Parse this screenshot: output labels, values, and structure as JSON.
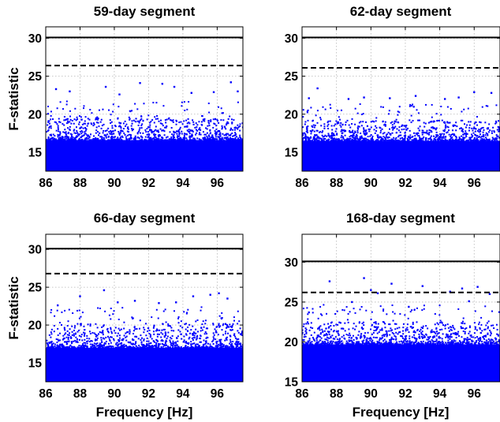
{
  "chart_data": [
    {
      "type": "scatter",
      "title": "59-day segment",
      "xlabel": "",
      "ylabel": "F-statistic",
      "xlim": [
        86,
        97.5
      ],
      "ylim": [
        12.5,
        31.5
      ],
      "xticks": [
        "86",
        "88",
        "90",
        "92",
        "94",
        "96"
      ],
      "yticks": [
        "15",
        "20",
        "25",
        "30"
      ],
      "grid": true,
      "thresholds": [
        {
          "style": "solid",
          "value": 30.1
        },
        {
          "style": "dashed",
          "value": 26.4
        }
      ],
      "dense_band": {
        "from": 12.5,
        "to": 16.6
      },
      "scatter_max": 19.5,
      "outliers": [
        [
          86.6,
          23.3
        ],
        [
          87.4,
          23.0
        ],
        [
          89.5,
          23.6
        ],
        [
          90.3,
          22.6
        ],
        [
          91.5,
          24.1
        ],
        [
          92.8,
          24.0
        ],
        [
          93.5,
          23.6
        ],
        [
          94.5,
          22.8
        ],
        [
          95.8,
          22.9
        ],
        [
          96.8,
          24.2
        ],
        [
          97.2,
          23.0
        ]
      ],
      "color": "#0000ff"
    },
    {
      "type": "scatter",
      "title": "62-day segment",
      "xlabel": "",
      "ylabel": "",
      "xlim": [
        86,
        97.5
      ],
      "ylim": [
        12.5,
        31.5
      ],
      "xticks": [
        "86",
        "88",
        "90",
        "92",
        "94",
        "96"
      ],
      "yticks": [
        "15",
        "20",
        "25",
        "30"
      ],
      "grid": true,
      "thresholds": [
        {
          "style": "solid",
          "value": 30.1
        },
        {
          "style": "dashed",
          "value": 26.1
        }
      ],
      "dense_band": {
        "from": 12.5,
        "to": 16.5
      },
      "scatter_max": 19.2,
      "outliers": [
        [
          86.4,
          22.1
        ],
        [
          86.9,
          23.4
        ],
        [
          88.7,
          22.0
        ],
        [
          89.6,
          22.2
        ],
        [
          91.1,
          22.1
        ],
        [
          92.6,
          22.4
        ],
        [
          94.3,
          22.0
        ],
        [
          95.1,
          22.2
        ],
        [
          96.0,
          22.9
        ],
        [
          97.0,
          22.8
        ]
      ],
      "color": "#0000ff"
    },
    {
      "type": "scatter",
      "title": "66-day segment",
      "xlabel": "Frequency [Hz]",
      "ylabel": "F-statistic",
      "xlim": [
        86,
        97.5
      ],
      "ylim": [
        12.5,
        32.0
      ],
      "xticks": [
        "86",
        "88",
        "90",
        "92",
        "94",
        "96"
      ],
      "yticks": [
        "15",
        "20",
        "25",
        "30"
      ],
      "grid": true,
      "thresholds": [
        {
          "style": "solid",
          "value": 30.1
        },
        {
          "style": "dashed",
          "value": 26.8
        }
      ],
      "dense_band": {
        "from": 12.5,
        "to": 17.0
      },
      "scatter_max": 20.2,
      "outliers": [
        [
          86.7,
          22.6
        ],
        [
          88.0,
          23.8
        ],
        [
          89.4,
          24.6
        ],
        [
          90.2,
          23.0
        ],
        [
          91.2,
          23.2
        ],
        [
          92.6,
          22.9
        ],
        [
          93.6,
          23.0
        ],
        [
          94.6,
          23.8
        ],
        [
          95.6,
          24.0
        ],
        [
          96.1,
          24.2
        ],
        [
          96.6,
          23.5
        ]
      ],
      "color": "#0000ff"
    },
    {
      "type": "scatter",
      "title": "168-day segment",
      "xlabel": "Frequency [Hz]",
      "ylabel": "",
      "xlim": [
        86,
        97.5
      ],
      "ylim": [
        15,
        33.5
      ],
      "xticks": [
        "86",
        "88",
        "90",
        "92",
        "94",
        "96"
      ],
      "yticks": [
        "15",
        "20",
        "25",
        "30"
      ],
      "grid": true,
      "thresholds": [
        {
          "style": "solid",
          "value": 30.1
        },
        {
          "style": "dashed",
          "value": 26.2
        }
      ],
      "dense_band": {
        "from": 15,
        "to": 19.7
      },
      "scatter_max": 22.5,
      "outliers": [
        [
          87.6,
          27.6
        ],
        [
          89.6,
          28.0
        ],
        [
          90.0,
          26.5
        ],
        [
          90.4,
          26.1
        ],
        [
          91.2,
          27.3
        ],
        [
          93.0,
          27.0
        ],
        [
          94.6,
          26.3
        ],
        [
          95.3,
          26.7
        ],
        [
          96.2,
          26.9
        ],
        [
          96.9,
          26.0
        ],
        [
          86.4,
          23.7
        ],
        [
          88.9,
          25.0
        ],
        [
          92.2,
          24.4
        ],
        [
          95.7,
          25.1
        ]
      ],
      "color": "#0000ff"
    }
  ]
}
